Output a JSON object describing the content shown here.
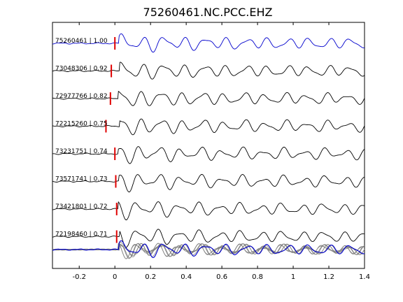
{
  "chart_data": {
    "type": "line",
    "title": "75260461.NC.PCC.EHZ",
    "xlabel": "",
    "ylabel": "",
    "xlim": [
      -0.35,
      1.4
    ],
    "x_ticks": [
      -0.2,
      0,
      0.2,
      0.4,
      0.6,
      0.8,
      1,
      1.2,
      1.4
    ],
    "x_tick_labels": [
      "-0.2",
      "0",
      "0.2",
      "0.4",
      "0.6",
      "0.8",
      "1",
      "1.2",
      "1.4"
    ],
    "grid": false,
    "pick_color": "#e00000",
    "master_color": "#0000cc",
    "trace_color": "#000000",
    "stack_color": "#808080",
    "traces": [
      {
        "event_id": "75260461",
        "correlation": "1.00",
        "label": "75260461 | 1.00",
        "pick_time": 0.0,
        "shift": 0.0,
        "master": true
      },
      {
        "event_id": "73048306",
        "correlation": "0.92",
        "label": "73048306 | 0.92",
        "pick_time": -0.02,
        "shift": 0.004,
        "master": false
      },
      {
        "event_id": "72977766",
        "correlation": "0.82",
        "label": "72977766 | 0.82",
        "pick_time": -0.025,
        "shift": -0.003,
        "master": false
      },
      {
        "event_id": "72215260",
        "correlation": "0.75",
        "label": "72215260 | 0.75",
        "pick_time": -0.05,
        "shift": 0.006,
        "master": false
      },
      {
        "event_id": "73231751",
        "correlation": "0.74",
        "label": "73231751 | 0.74",
        "pick_time": 0.0,
        "shift": -0.002,
        "master": false
      },
      {
        "event_id": "73571741",
        "correlation": "0.73",
        "label": "73571741 | 0.73",
        "pick_time": 0.005,
        "shift": 0.003,
        "master": false
      },
      {
        "event_id": "73421801",
        "correlation": "0.72",
        "label": "73421801 | 0.72",
        "pick_time": 0.01,
        "shift": -0.004,
        "master": false
      },
      {
        "event_id": "72198460",
        "correlation": "0.71",
        "label": "72198460 | 0.71",
        "pick_time": 0.01,
        "shift": 0.005,
        "master": false
      }
    ]
  }
}
